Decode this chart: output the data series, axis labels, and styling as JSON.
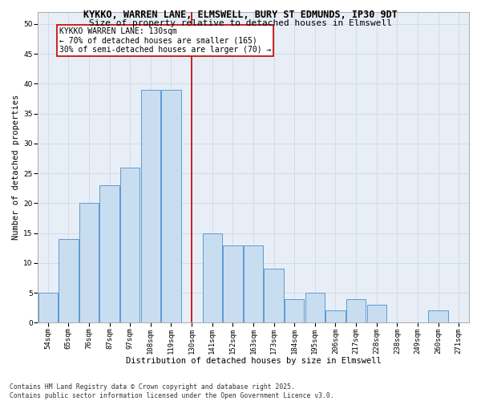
{
  "title1": "KYKKO, WARREN LANE, ELMSWELL, BURY ST EDMUNDS, IP30 9DT",
  "title2": "Size of property relative to detached houses in Elmswell",
  "xlabel": "Distribution of detached houses by size in Elmswell",
  "ylabel": "Number of detached properties",
  "categories": [
    "54sqm",
    "65sqm",
    "76sqm",
    "87sqm",
    "97sqm",
    "108sqm",
    "119sqm",
    "130sqm",
    "141sqm",
    "152sqm",
    "163sqm",
    "173sqm",
    "184sqm",
    "195sqm",
    "206sqm",
    "217sqm",
    "228sqm",
    "238sqm",
    "249sqm",
    "260sqm",
    "271sqm"
  ],
  "values": [
    5,
    14,
    20,
    23,
    26,
    39,
    39,
    0,
    15,
    13,
    13,
    9,
    4,
    5,
    2,
    4,
    3,
    0,
    0,
    2,
    0
  ],
  "bar_color": "#c9ddf0",
  "bar_edge_color": "#5b9bd5",
  "vline_x": 7,
  "vline_color": "#c00000",
  "annotation_text": "KYKKO WARREN LANE: 130sqm\n← 70% of detached houses are smaller (165)\n30% of semi-detached houses are larger (70) →",
  "annotation_box_color": "#c00000",
  "ylim": [
    0,
    52
  ],
  "yticks": [
    0,
    5,
    10,
    15,
    20,
    25,
    30,
    35,
    40,
    45,
    50
  ],
  "footer": "Contains HM Land Registry data © Crown copyright and database right 2025.\nContains public sector information licensed under the Open Government Licence v3.0.",
  "bg_color": "#ffffff",
  "grid_color": "#d0d8e4",
  "title1_fontsize": 8.5,
  "title2_fontsize": 8.0,
  "xlabel_fontsize": 7.5,
  "ylabel_fontsize": 7.5,
  "tick_fontsize": 6.5,
  "annot_fontsize": 7.0,
  "footer_fontsize": 5.8
}
